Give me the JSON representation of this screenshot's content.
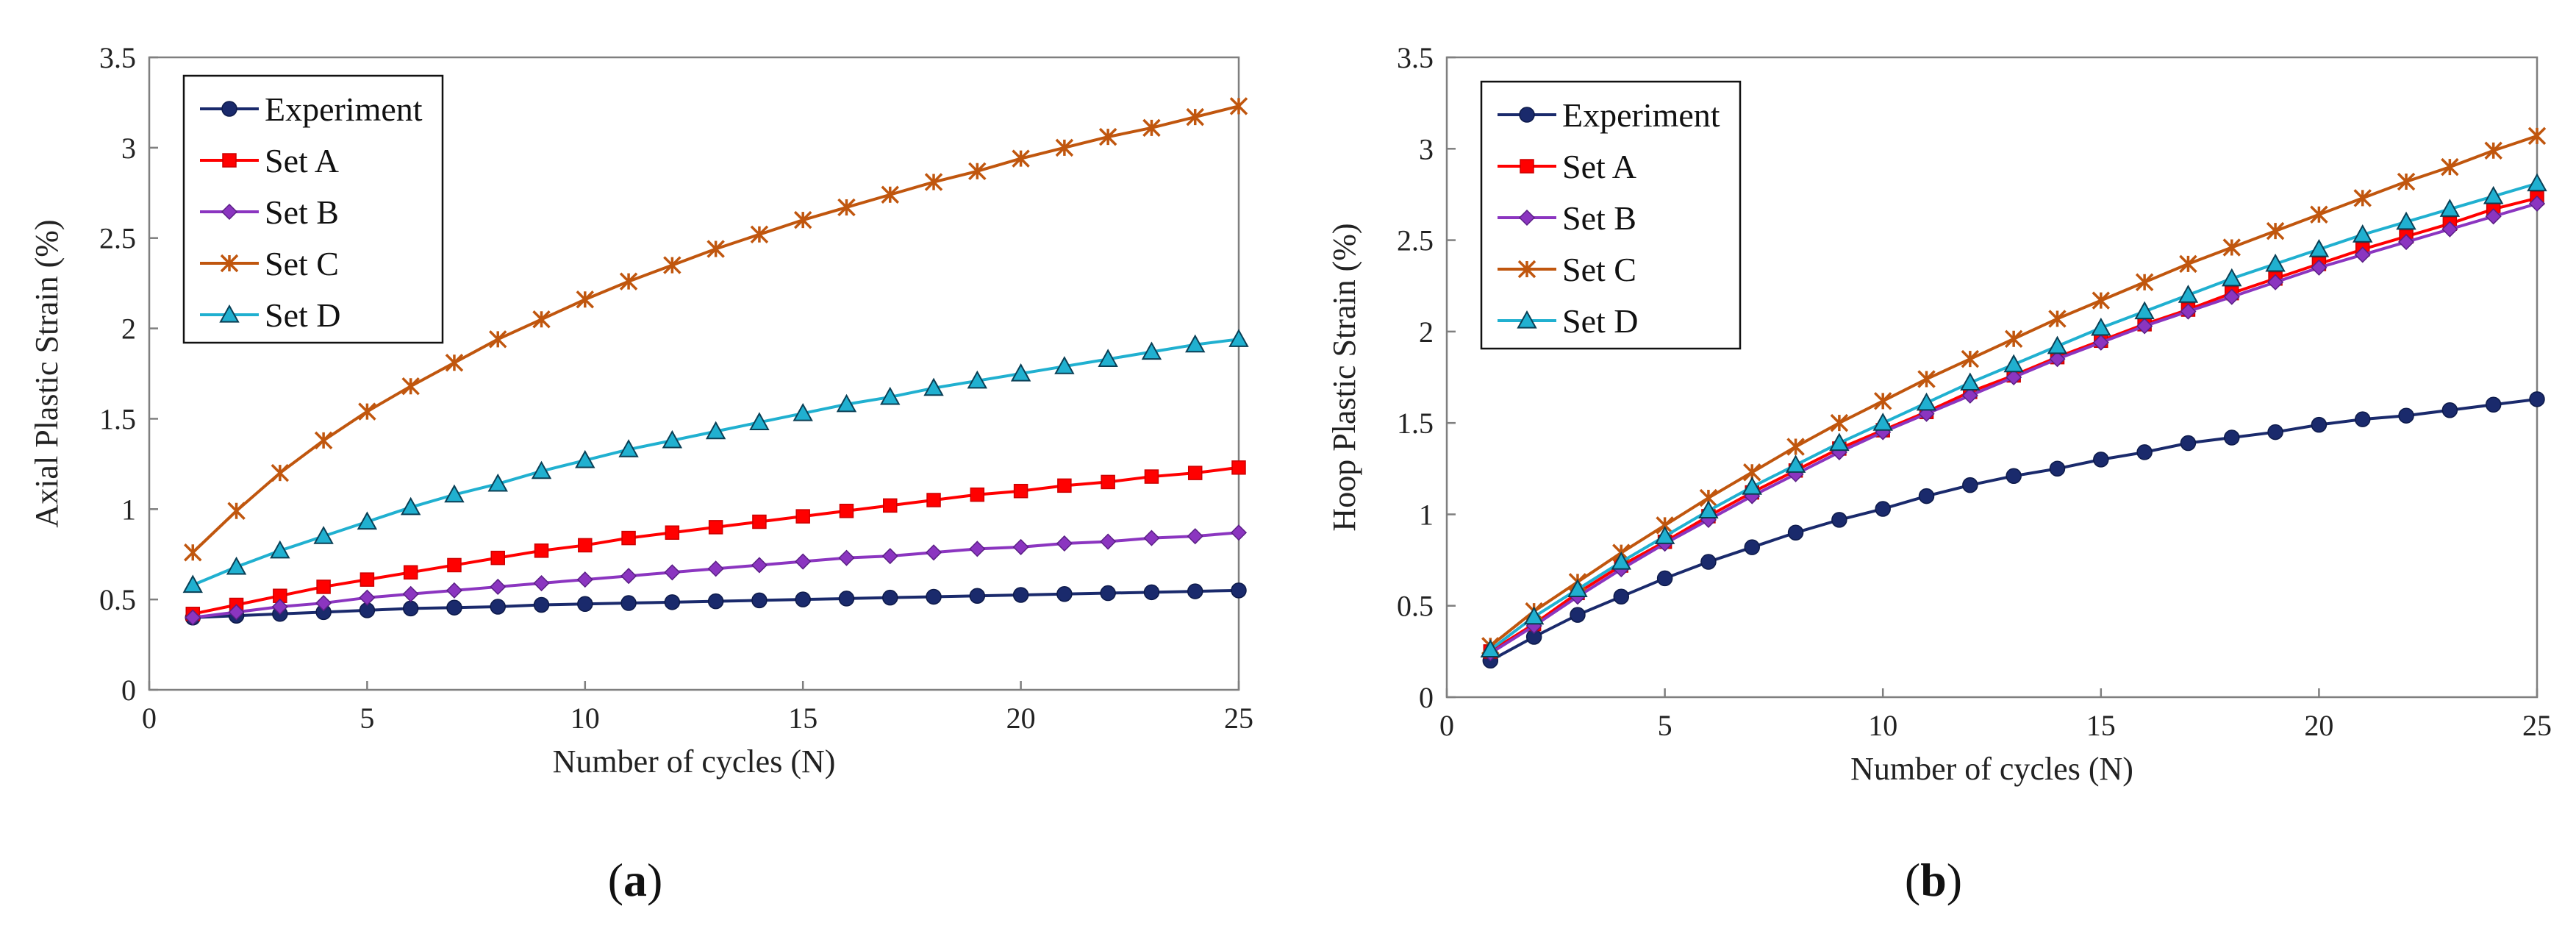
{
  "chart_data": [
    {
      "type": "line",
      "panel_label": "a",
      "xlabel": "Number of cycles (N)",
      "ylabel": "Axial Plastic Strain (%)",
      "xlim": [
        0,
        25
      ],
      "ylim": [
        0,
        3.5
      ],
      "xticks": [
        "0",
        "5",
        "10",
        "15",
        "20",
        "25"
      ],
      "yticks": [
        "0",
        "0.5",
        "1",
        "1.5",
        "2",
        "2.5",
        "3",
        "3.5"
      ],
      "grid": false,
      "legend_position": "top-left",
      "x": [
        1,
        2,
        3,
        4,
        5,
        6,
        7,
        8,
        9,
        10,
        11,
        12,
        13,
        14,
        15,
        16,
        17,
        18,
        19,
        20,
        21,
        22,
        23,
        24,
        25
      ],
      "series": [
        {
          "name": "Experiment",
          "color": "#1a2a6c",
          "marker": "circle",
          "values": [
            0.4,
            0.41,
            0.42,
            0.43,
            0.44,
            0.45,
            0.455,
            0.46,
            0.47,
            0.475,
            0.48,
            0.485,
            0.49,
            0.495,
            0.5,
            0.505,
            0.51,
            0.515,
            0.52,
            0.525,
            0.53,
            0.535,
            0.54,
            0.545,
            0.55
          ]
        },
        {
          "name": "Set A",
          "color": "#ff0000",
          "marker": "square",
          "values": [
            0.42,
            0.47,
            0.52,
            0.57,
            0.61,
            0.65,
            0.69,
            0.73,
            0.77,
            0.8,
            0.84,
            0.87,
            0.9,
            0.93,
            0.96,
            0.99,
            1.02,
            1.05,
            1.08,
            1.1,
            1.13,
            1.15,
            1.18,
            1.2,
            1.23
          ]
        },
        {
          "name": "Set B",
          "color": "#8b35c0",
          "marker": "diamond",
          "values": [
            0.4,
            0.43,
            0.46,
            0.48,
            0.51,
            0.53,
            0.55,
            0.57,
            0.59,
            0.61,
            0.63,
            0.65,
            0.67,
            0.69,
            0.71,
            0.73,
            0.74,
            0.76,
            0.78,
            0.79,
            0.81,
            0.82,
            0.84,
            0.85,
            0.87
          ]
        },
        {
          "name": "Set C",
          "color": "#c0560e",
          "marker": "star",
          "values": [
            0.76,
            0.99,
            1.2,
            1.38,
            1.54,
            1.68,
            1.81,
            1.94,
            2.05,
            2.16,
            2.26,
            2.35,
            2.44,
            2.52,
            2.6,
            2.67,
            2.74,
            2.81,
            2.87,
            2.94,
            3.0,
            3.06,
            3.11,
            3.17,
            3.23
          ]
        },
        {
          "name": "Set D",
          "color": "#20b0d0",
          "marker": "triangle",
          "values": [
            0.58,
            0.68,
            0.77,
            0.85,
            0.93,
            1.01,
            1.08,
            1.14,
            1.21,
            1.27,
            1.33,
            1.38,
            1.43,
            1.48,
            1.53,
            1.58,
            1.62,
            1.67,
            1.71,
            1.75,
            1.79,
            1.83,
            1.87,
            1.91,
            1.94
          ]
        }
      ]
    },
    {
      "type": "line",
      "panel_label": "b",
      "xlabel": "Number of cycles (N)",
      "ylabel": "Hoop Plastic Strain (%)",
      "xlim": [
        0,
        25
      ],
      "ylim": [
        0,
        3.5
      ],
      "xticks": [
        "0",
        "5",
        "10",
        "15",
        "20",
        "25"
      ],
      "yticks": [
        "0",
        "0.5",
        "1",
        "1.5",
        "2",
        "2.5",
        "3",
        "3.5"
      ],
      "grid": false,
      "legend_position": "top-left",
      "x": [
        1,
        2,
        3,
        4,
        5,
        6,
        7,
        8,
        9,
        10,
        11,
        12,
        13,
        14,
        15,
        16,
        17,
        18,
        19,
        20,
        21,
        22,
        23,
        24,
        25
      ],
      "series": [
        {
          "name": "Experiment",
          "color": "#1a2a6c",
          "marker": "circle",
          "values": [
            0.2,
            0.33,
            0.45,
            0.55,
            0.65,
            0.74,
            0.82,
            0.9,
            0.97,
            1.03,
            1.1,
            1.16,
            1.21,
            1.25,
            1.3,
            1.34,
            1.39,
            1.42,
            1.45,
            1.49,
            1.52,
            1.54,
            1.57,
            1.6,
            1.63
          ]
        },
        {
          "name": "Set A",
          "color": "#ff0000",
          "marker": "square",
          "values": [
            0.25,
            0.4,
            0.57,
            0.72,
            0.85,
            0.99,
            1.12,
            1.24,
            1.36,
            1.46,
            1.56,
            1.67,
            1.76,
            1.86,
            1.95,
            2.04,
            2.12,
            2.21,
            2.29,
            2.37,
            2.45,
            2.52,
            2.59,
            2.67,
            2.73
          ]
        },
        {
          "name": "Set B",
          "color": "#8b35c0",
          "marker": "diamond",
          "values": [
            0.24,
            0.39,
            0.55,
            0.7,
            0.84,
            0.97,
            1.1,
            1.22,
            1.34,
            1.45,
            1.55,
            1.65,
            1.75,
            1.85,
            1.94,
            2.03,
            2.11,
            2.19,
            2.27,
            2.35,
            2.42,
            2.49,
            2.56,
            2.63,
            2.7
          ]
        },
        {
          "name": "Set C",
          "color": "#c0560e",
          "marker": "star",
          "values": [
            0.28,
            0.47,
            0.63,
            0.79,
            0.94,
            1.09,
            1.23,
            1.37,
            1.5,
            1.62,
            1.74,
            1.85,
            1.96,
            2.07,
            2.17,
            2.27,
            2.37,
            2.46,
            2.55,
            2.64,
            2.73,
            2.82,
            2.9,
            2.99,
            3.07
          ]
        },
        {
          "name": "Set D",
          "color": "#20b0d0",
          "marker": "triangle",
          "values": [
            0.26,
            0.44,
            0.59,
            0.74,
            0.88,
            1.02,
            1.15,
            1.27,
            1.39,
            1.5,
            1.61,
            1.72,
            1.82,
            1.92,
            2.02,
            2.11,
            2.2,
            2.29,
            2.37,
            2.45,
            2.53,
            2.6,
            2.67,
            2.74,
            2.81
          ]
        }
      ]
    }
  ]
}
